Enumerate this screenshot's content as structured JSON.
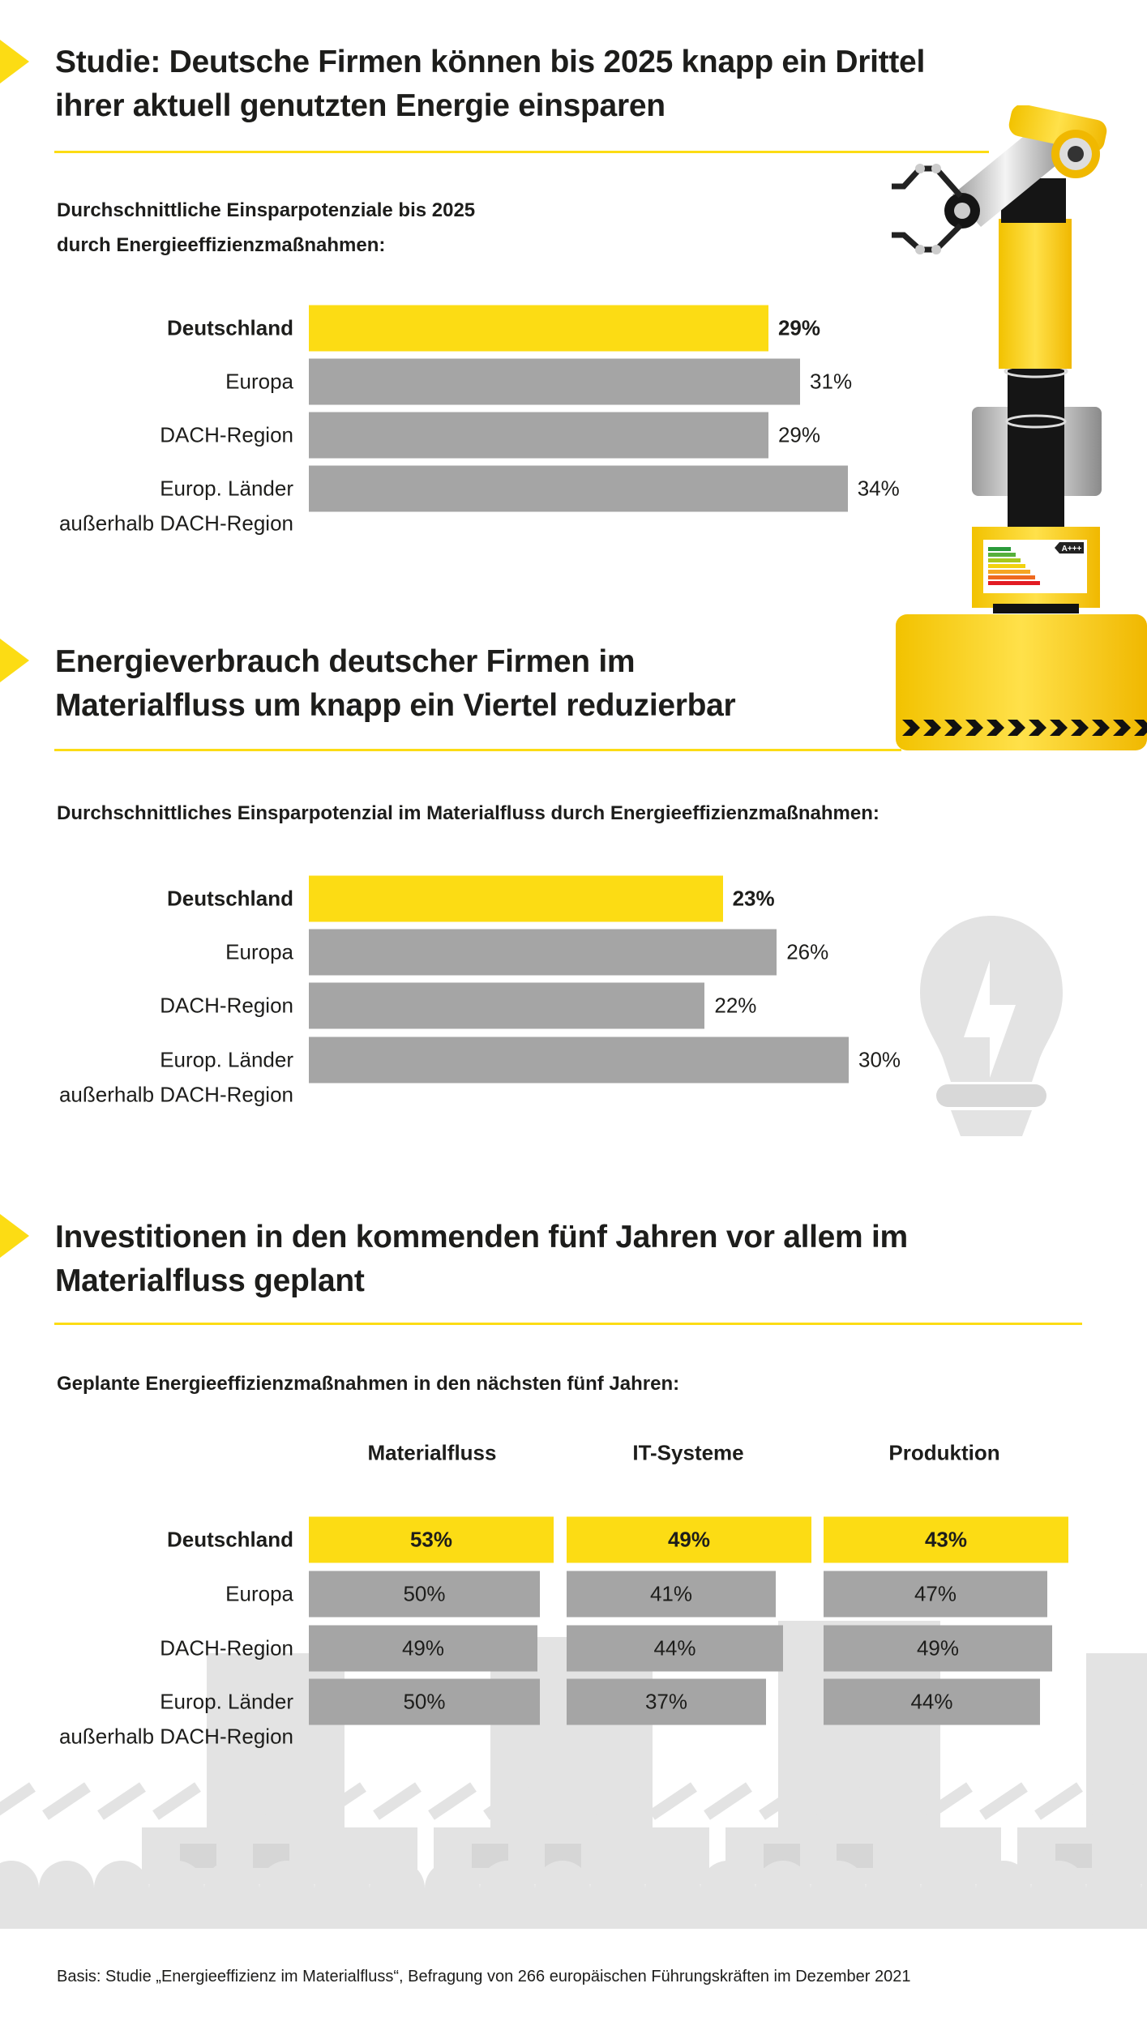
{
  "colors": {
    "accent": "#fcdc14",
    "bar_gray": "#a5a5a5",
    "text": "#1d1d1b",
    "illustration_gray": "#e3e3e3"
  },
  "sections": [
    {
      "title_lines": [
        "Studie: Deutsche Firmen können bis 2025 knapp ein Drittel",
        "ihrer aktuell genutzten Energie einsparen"
      ],
      "subtitle_lines": [
        "Durchschnittliche Einsparpotenziale bis 2025",
        "durch Energieeffizienzmaßnahmen:"
      ]
    },
    {
      "title_lines": [
        "Energieverbrauch deutscher Firmen im",
        "Materialfluss um knapp ein Viertel reduzierbar"
      ],
      "subtitle_lines": [
        "Durchschnittliches Einsparpotenzial im Materialfluss durch Energieeffizienzmaßnahmen:"
      ]
    },
    {
      "title_lines": [
        "Investitionen in den kommenden fünf Jahren vor allem im",
        "Materialfluss geplant"
      ],
      "subtitle_lines": [
        "Geplante Energieeffizienzmaßnahmen in den nächsten fünf Jahren:"
      ]
    }
  ],
  "chart_data": [
    {
      "type": "bar",
      "orientation": "horizontal",
      "unit": "%",
      "categories": [
        [
          "Deutschland"
        ],
        [
          "Europa"
        ],
        [
          "DACH-Region"
        ],
        [
          "Europ. Länder",
          "außerhalb DACH-Region"
        ]
      ],
      "values": [
        29,
        31,
        29,
        34
      ],
      "value_labels": [
        "29%",
        "31%",
        "29%",
        "34%"
      ],
      "highlight_index": 0
    },
    {
      "type": "bar",
      "orientation": "horizontal",
      "unit": "%",
      "categories": [
        [
          "Deutschland"
        ],
        [
          "Europa"
        ],
        [
          "DACH-Region"
        ],
        [
          "Europ. Länder",
          "außerhalb DACH-Region"
        ]
      ],
      "values": [
        23,
        26,
        22,
        30
      ],
      "value_labels": [
        "23%",
        "26%",
        "22%",
        "30%"
      ],
      "highlight_index": 0
    },
    {
      "type": "table",
      "unit": "%",
      "columns": [
        "Materialfluss",
        "IT-Systeme",
        "Produktion"
      ],
      "rows": [
        [
          "Deutschland"
        ],
        [
          "Europa"
        ],
        [
          "DACH-Region"
        ],
        [
          "Europ. Länder",
          "außerhalb DACH-Region"
        ]
      ],
      "values": [
        [
          53,
          49,
          43
        ],
        [
          50,
          41,
          47
        ],
        [
          49,
          44,
          49
        ],
        [
          50,
          37,
          44
        ]
      ],
      "value_labels": [
        [
          "53%",
          "49%",
          "43%"
        ],
        [
          "50%",
          "41%",
          "47%"
        ],
        [
          "49%",
          "44%",
          "49%"
        ],
        [
          "50%",
          "37%",
          "44%"
        ]
      ],
      "highlight_index": 0
    }
  ],
  "footer": "Basis: Studie „Energieeffizienz im Materialfluss“, Befragung von 266 europäischen Führungskräften im Dezember 2021",
  "illustrations": {
    "robot": "robot-arm-with-energy-label",
    "bulb": "lightbulb-lightning",
    "conveyor": "conveyor-belt-boxes",
    "energy_label_badge": "A+++"
  }
}
